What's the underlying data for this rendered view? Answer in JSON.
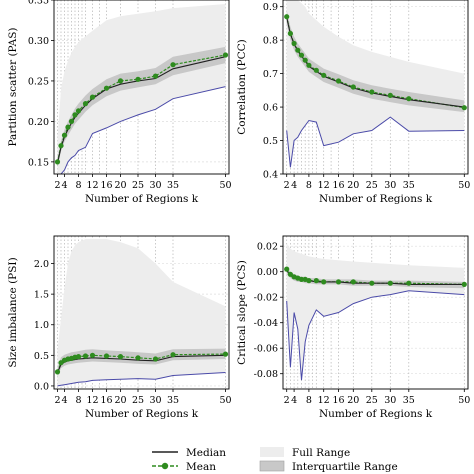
{
  "legend": {
    "placement": "bottom-center",
    "entries": [
      {
        "label": "Median",
        "style": "line",
        "color": "#222222"
      },
      {
        "label": "Mean",
        "style": "line-marker",
        "color": "#2e8b1f"
      },
      {
        "label": "Full Range",
        "style": "fill",
        "color": "#ededed"
      },
      {
        "label": "Interquartile Range",
        "style": "fill",
        "color": "#c8c8c8"
      }
    ]
  },
  "colors": {
    "full_range": "#ededed",
    "iqr": "#c8c8c8",
    "median": "#222222",
    "mean": "#2e8b1f",
    "min_line": "#4a4aa8",
    "vgrid": "#b5b5b5",
    "hgrid": "#dedede"
  },
  "chart_data": [
    {
      "type": "line",
      "xlabel": "Number of Regions k",
      "ylabel": "Partition scatter (PAS)",
      "xlim": [
        1,
        51
      ],
      "ylim": [
        0.135,
        0.35
      ],
      "grid": true,
      "xticks": [
        2,
        4,
        8,
        12,
        16,
        20,
        25,
        30,
        35,
        50
      ],
      "yticks": [
        0.15,
        0.2,
        0.25,
        0.3,
        0.35
      ],
      "ytick_labels": [
        "0.15",
        "0.20",
        "0.25",
        "0.30",
        "0.35"
      ],
      "vgrid_x": [
        2,
        3,
        4,
        5,
        6,
        7,
        8,
        9,
        10,
        12,
        14,
        16,
        20,
        25,
        30,
        35,
        50
      ],
      "x": [
        2,
        3,
        4,
        5,
        6,
        7,
        8,
        10,
        12,
        16,
        20,
        25,
        30,
        35,
        50
      ],
      "mean": [
        0.15,
        0.17,
        0.183,
        0.193,
        0.2,
        0.208,
        0.213,
        0.222,
        0.23,
        0.241,
        0.25,
        0.252,
        0.256,
        0.27,
        0.282
      ],
      "median": [
        0.148,
        0.168,
        0.181,
        0.19,
        0.198,
        0.205,
        0.21,
        0.22,
        0.228,
        0.24,
        0.246,
        0.25,
        0.253,
        0.265,
        0.28
      ],
      "min": [
        0.128,
        0.135,
        0.14,
        0.15,
        0.155,
        0.158,
        0.164,
        0.168,
        0.185,
        0.192,
        0.2,
        0.208,
        0.215,
        0.228,
        0.243
      ],
      "q1": [
        0.143,
        0.163,
        0.175,
        0.183,
        0.19,
        0.197,
        0.202,
        0.212,
        0.22,
        0.231,
        0.238,
        0.242,
        0.246,
        0.257,
        0.272
      ],
      "q3": [
        0.156,
        0.176,
        0.19,
        0.2,
        0.208,
        0.216,
        0.222,
        0.232,
        0.24,
        0.252,
        0.259,
        0.262,
        0.266,
        0.28,
        0.292
      ],
      "full_max": [
        0.18,
        0.24,
        0.262,
        0.275,
        0.285,
        0.292,
        0.298,
        0.305,
        0.312,
        0.325,
        0.33,
        0.333,
        0.336,
        0.34,
        0.345
      ]
    },
    {
      "type": "line",
      "xlabel": "Number of Regions k",
      "ylabel": "Correlation (PCC)",
      "xlim": [
        1,
        51
      ],
      "ylim": [
        0.4,
        0.92
      ],
      "grid": true,
      "xticks": [
        2,
        4,
        8,
        12,
        16,
        20,
        25,
        30,
        35,
        50
      ],
      "yticks": [
        0.4,
        0.5,
        0.6,
        0.7,
        0.8,
        0.9
      ],
      "ytick_labels": [
        "0.4",
        "0.5",
        "0.6",
        "0.7",
        "0.8",
        "0.9"
      ],
      "vgrid_x": [
        2,
        3,
        4,
        5,
        6,
        7,
        8,
        9,
        10,
        12,
        14,
        16,
        20,
        25,
        30,
        35,
        50
      ],
      "x": [
        2,
        3,
        4,
        5,
        6,
        7,
        8,
        10,
        12,
        16,
        20,
        25,
        30,
        35,
        50
      ],
      "mean": [
        0.87,
        0.82,
        0.79,
        0.77,
        0.755,
        0.74,
        0.725,
        0.71,
        0.695,
        0.678,
        0.66,
        0.645,
        0.635,
        0.625,
        0.598
      ],
      "median": [
        0.868,
        0.818,
        0.788,
        0.768,
        0.752,
        0.738,
        0.722,
        0.707,
        0.692,
        0.675,
        0.657,
        0.642,
        0.632,
        0.622,
        0.6
      ],
      "min": [
        0.53,
        0.42,
        0.5,
        0.51,
        0.53,
        0.545,
        0.56,
        0.555,
        0.485,
        0.495,
        0.52,
        0.53,
        0.57,
        0.528,
        0.53
      ],
      "q1": [
        0.85,
        0.8,
        0.77,
        0.75,
        0.735,
        0.72,
        0.705,
        0.69,
        0.675,
        0.658,
        0.64,
        0.625,
        0.615,
        0.605,
        0.585
      ],
      "q3": [
        0.89,
        0.84,
        0.81,
        0.79,
        0.775,
        0.76,
        0.745,
        0.73,
        0.715,
        0.698,
        0.68,
        0.665,
        0.655,
        0.645,
        0.62
      ],
      "full_max": [
        0.92,
        0.92,
        0.92,
        0.92,
        0.91,
        0.9,
        0.88,
        0.86,
        0.84,
        0.81,
        0.785,
        0.765,
        0.75,
        0.735,
        0.7
      ]
    },
    {
      "type": "line",
      "xlabel": "Number of Regions k",
      "ylabel": "Size imbalance (PSI)",
      "xlim": [
        1,
        51
      ],
      "ylim": [
        -0.05,
        2.45
      ],
      "grid": true,
      "xticks": [
        2,
        4,
        8,
        12,
        16,
        20,
        25,
        30,
        35,
        50
      ],
      "yticks": [
        0.0,
        0.5,
        1.0,
        1.5,
        2.0
      ],
      "ytick_labels": [
        "0.0",
        "0.5",
        "1.0",
        "1.5",
        "2.0"
      ],
      "vgrid_x": [
        2,
        3,
        4,
        5,
        6,
        7,
        8,
        9,
        10,
        12,
        14,
        16,
        20,
        25,
        30,
        35,
        50
      ],
      "x": [
        2,
        3,
        4,
        5,
        6,
        7,
        8,
        10,
        12,
        16,
        20,
        25,
        30,
        35,
        50
      ],
      "mean": [
        0.23,
        0.38,
        0.42,
        0.44,
        0.45,
        0.47,
        0.48,
        0.49,
        0.5,
        0.49,
        0.48,
        0.46,
        0.44,
        0.51,
        0.52
      ],
      "median": [
        0.22,
        0.35,
        0.39,
        0.41,
        0.42,
        0.43,
        0.44,
        0.45,
        0.46,
        0.45,
        0.44,
        0.42,
        0.41,
        0.48,
        0.5
      ],
      "min": [
        0.0,
        0.01,
        0.02,
        0.03,
        0.04,
        0.05,
        0.06,
        0.07,
        0.09,
        0.1,
        0.11,
        0.12,
        0.11,
        0.17,
        0.22
      ],
      "q1": [
        0.15,
        0.29,
        0.33,
        0.35,
        0.36,
        0.37,
        0.38,
        0.39,
        0.4,
        0.39,
        0.38,
        0.36,
        0.35,
        0.42,
        0.44
      ],
      "q3": [
        0.3,
        0.47,
        0.51,
        0.53,
        0.55,
        0.56,
        0.57,
        0.59,
        0.6,
        0.58,
        0.57,
        0.55,
        0.53,
        0.6,
        0.61
      ],
      "full_max": [
        0.6,
        1.1,
        1.6,
        2.0,
        2.2,
        2.3,
        2.35,
        2.4,
        2.4,
        2.4,
        2.35,
        2.25,
        2.0,
        1.7,
        1.3
      ]
    },
    {
      "type": "line",
      "xlabel": "Number of Regions k",
      "ylabel": "Critical slope (PCS)",
      "xlim": [
        1,
        51
      ],
      "ylim": [
        -0.092,
        0.028
      ],
      "grid": true,
      "xticks": [
        2,
        4,
        8,
        12,
        16,
        20,
        25,
        30,
        35,
        50
      ],
      "yticks": [
        -0.08,
        -0.06,
        -0.04,
        -0.02,
        0.0,
        0.02
      ],
      "ytick_labels": [
        "-0.08",
        "-0.06",
        "-0.04",
        "-0.02",
        "0.00",
        "0.02"
      ],
      "vgrid_x": [
        2,
        3,
        4,
        5,
        6,
        7,
        8,
        9,
        10,
        12,
        14,
        16,
        20,
        25,
        30,
        35,
        50
      ],
      "x": [
        2,
        3,
        4,
        5,
        6,
        7,
        8,
        10,
        12,
        16,
        20,
        25,
        30,
        35,
        50
      ],
      "mean": [
        0.002,
        -0.002,
        -0.004,
        -0.005,
        -0.006,
        -0.006,
        -0.007,
        -0.007,
        -0.008,
        -0.008,
        -0.008,
        -0.009,
        -0.009,
        -0.009,
        -0.01
      ],
      "median": [
        0.001,
        -0.003,
        -0.005,
        -0.006,
        -0.006,
        -0.007,
        -0.007,
        -0.008,
        -0.008,
        -0.008,
        -0.009,
        -0.009,
        -0.009,
        -0.01,
        -0.01
      ],
      "min": [
        -0.023,
        -0.075,
        -0.032,
        -0.045,
        -0.085,
        -0.055,
        -0.042,
        -0.03,
        -0.035,
        -0.032,
        -0.025,
        -0.02,
        -0.018,
        -0.015,
        -0.018
      ],
      "q1": [
        -0.002,
        -0.005,
        -0.007,
        -0.008,
        -0.008,
        -0.009,
        -0.009,
        -0.01,
        -0.01,
        -0.01,
        -0.011,
        -0.011,
        -0.011,
        -0.012,
        -0.013
      ],
      "q3": [
        0.004,
        0.0,
        -0.002,
        -0.003,
        -0.004,
        -0.004,
        -0.005,
        -0.005,
        -0.006,
        -0.006,
        -0.006,
        -0.007,
        -0.007,
        -0.007,
        -0.008
      ],
      "full_max": [
        0.022,
        0.018,
        0.016,
        0.015,
        0.014,
        0.013,
        0.012,
        0.011,
        0.01,
        0.009,
        0.008,
        0.007,
        0.006,
        0.005,
        0.003
      ]
    }
  ]
}
